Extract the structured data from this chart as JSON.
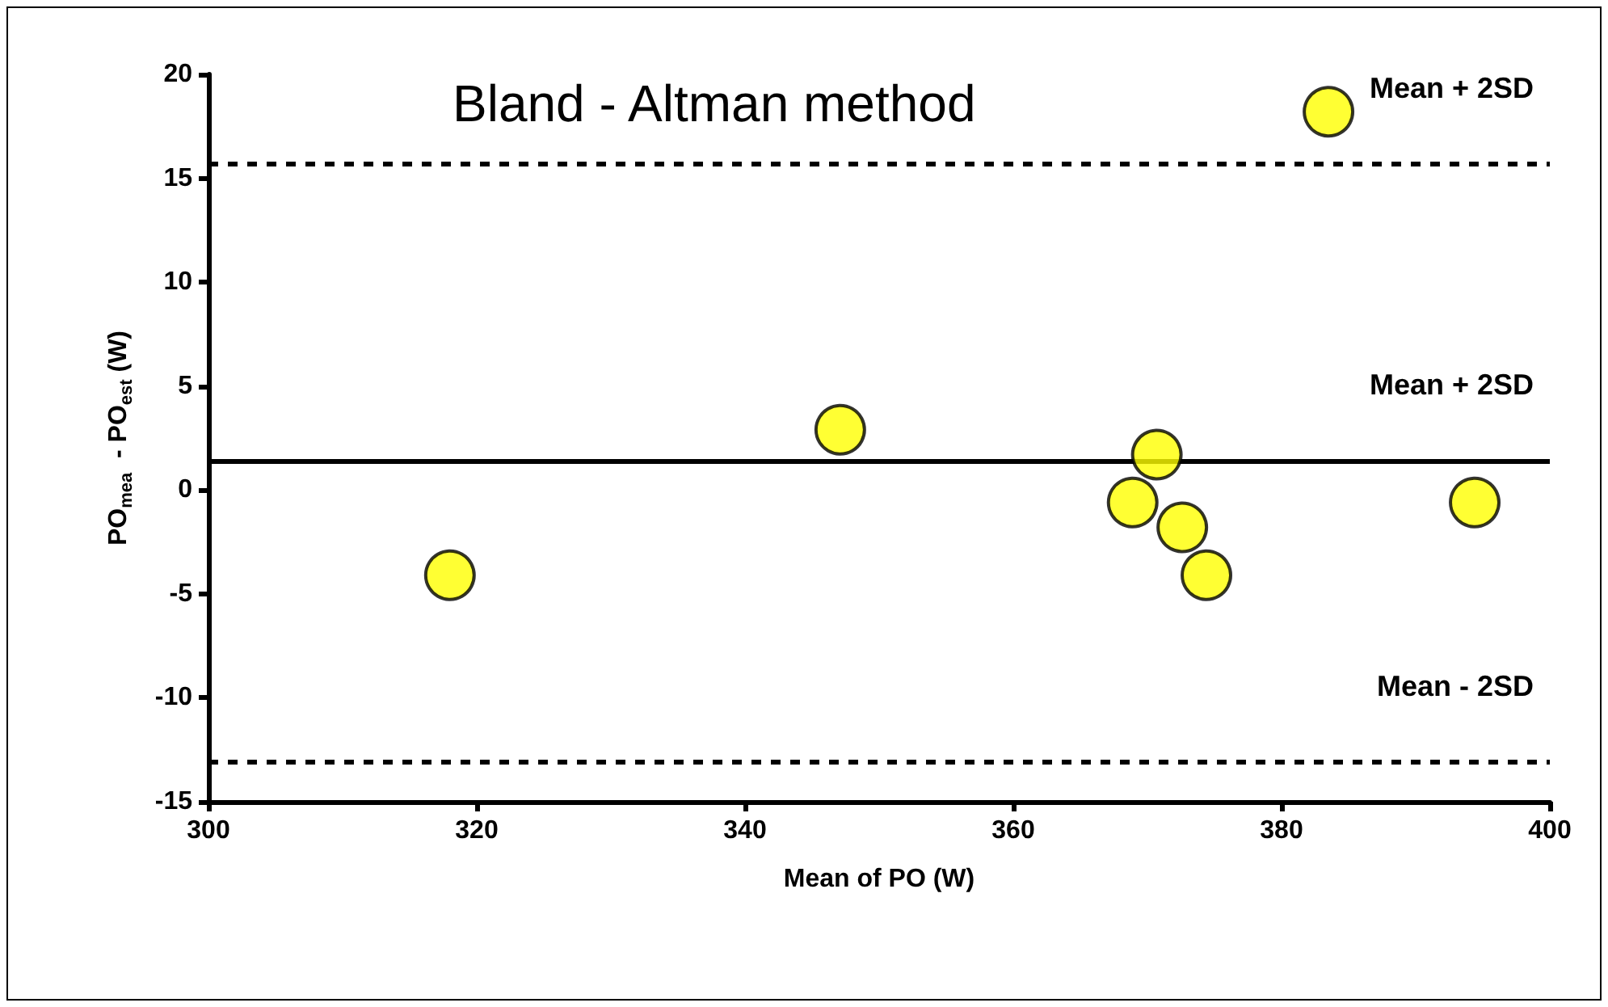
{
  "chart_data": {
    "type": "scatter",
    "title": "Bland - Altman method",
    "xlabel": "Mean of PO (W)",
    "ylabel": "PO$_{mea}$  - PO$_{est}$ (W)",
    "x": [
      318.0,
      347.1,
      383.5,
      370.7,
      368.9,
      372.6,
      374.4,
      394.4
    ],
    "series": [
      {
        "color": "#ffff00",
        "values": [
          -4.1,
          2.9,
          18.2,
          1.7,
          -0.6,
          -1.8,
          -4.1,
          -0.6
        ]
      }
    ],
    "xlim": [
      300,
      400
    ],
    "xticks": [
      300,
      320,
      340,
      360,
      380,
      400
    ],
    "ylim": [
      -15,
      20
    ],
    "yticks": [
      -15,
      -10,
      -5,
      0,
      5,
      10,
      15,
      20
    ],
    "marker": "circle",
    "grid": false,
    "ref_lines": [
      {
        "axis": "y",
        "value": 15.7,
        "label": "Mean + 2SD",
        "line_style": "dashed",
        "color": "#000000"
      },
      {
        "axis": "y",
        "value": 1.4,
        "label": "Mean + 2SD",
        "line_style": "solid",
        "color": "#000000"
      },
      {
        "axis": "y",
        "value": -13.1,
        "label": "Mean - 2SD",
        "line_style": "dashed",
        "color": "#000000"
      }
    ]
  }
}
